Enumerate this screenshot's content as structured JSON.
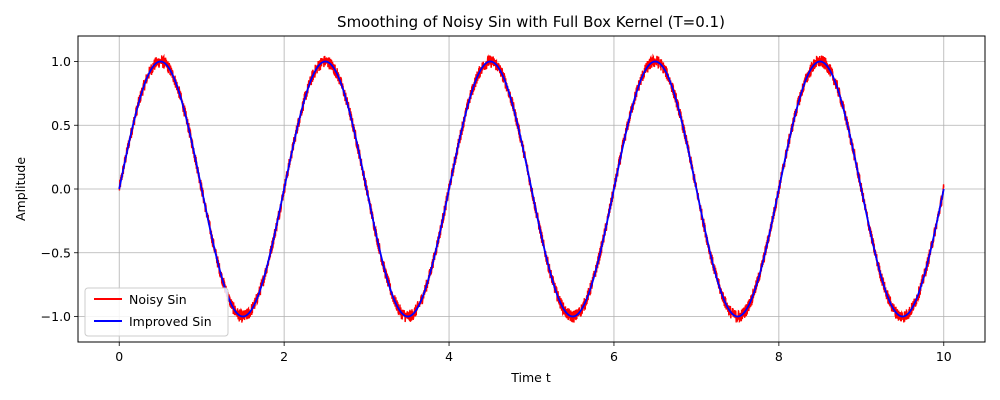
{
  "chart_data": {
    "type": "line",
    "title": "Smoothing of Noisy Sin with Full Box Kernel (T=0.1)",
    "xlabel": "Time t",
    "ylabel": "Amplitude",
    "xlim": [
      -0.5,
      10.5
    ],
    "ylim": [
      -1.2,
      1.2
    ],
    "xticks": [
      0,
      2,
      4,
      6,
      8,
      10
    ],
    "yticks": [
      -1.0,
      -0.5,
      0.0,
      0.5,
      1.0
    ],
    "xtick_labels": [
      "0",
      "2",
      "4",
      "6",
      "8",
      "10"
    ],
    "ytick_labels": [
      "−1.0",
      "−0.5",
      "0.0",
      "0.5",
      "1.0"
    ],
    "grid": true,
    "legend_position": "lower-left",
    "x_range": [
      0,
      10
    ],
    "sine_frequency_hz": 0.5,
    "series": [
      {
        "name": "Noisy Sin",
        "color": "#ff0000",
        "function": "sin(pi*t) + noise",
        "noise_amplitude": 0.05
      },
      {
        "name": "Improved Sin",
        "color": "#0000ff",
        "function": "sin(pi*t)"
      }
    ]
  }
}
